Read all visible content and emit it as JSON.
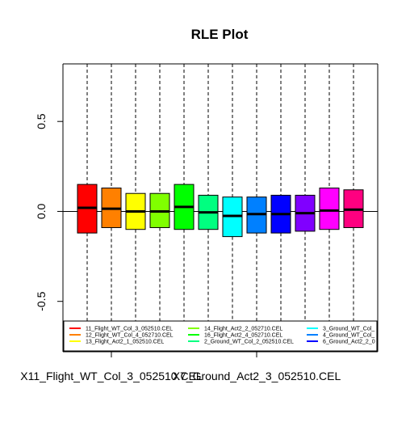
{
  "chart_data": {
    "type": "box",
    "title": "RLE Plot",
    "xlabel": "",
    "ylabel": "",
    "ylim": [
      -0.78,
      0.82
    ],
    "yticks": [
      -0.5,
      0.0,
      0.5
    ],
    "ytick_labels": [
      "-0.5",
      "0.0",
      "0.5"
    ],
    "x_tick_labels": [
      "X11_Flight_WT_Col_3_052510.CEL",
      "X7_Ground_Act2_3_052510.CEL"
    ],
    "x_tick_positions": [
      2,
      8
    ],
    "reference_line": 0,
    "grid": false,
    "legend_position": "bottom",
    "boxes": [
      {
        "q1": -0.12,
        "median": 0.02,
        "q3": 0.15,
        "color": "#FF0000"
      },
      {
        "q1": -0.09,
        "median": 0.015,
        "q3": 0.13,
        "color": "#FF8000"
      },
      {
        "q1": -0.1,
        "median": 0.0,
        "q3": 0.1,
        "color": "#FFFF00"
      },
      {
        "q1": -0.09,
        "median": 0.0,
        "q3": 0.1,
        "color": "#80FF00"
      },
      {
        "q1": -0.1,
        "median": 0.025,
        "q3": 0.15,
        "color": "#00FF00"
      },
      {
        "q1": -0.1,
        "median": -0.005,
        "q3": 0.09,
        "color": "#00FF80"
      },
      {
        "q1": -0.14,
        "median": -0.025,
        "q3": 0.08,
        "color": "#00FFFF"
      },
      {
        "q1": -0.12,
        "median": -0.015,
        "q3": 0.08,
        "color": "#0080FF"
      },
      {
        "q1": -0.12,
        "median": -0.015,
        "q3": 0.09,
        "color": "#0000FF"
      },
      {
        "q1": -0.11,
        "median": -0.01,
        "q3": 0.09,
        "color": "#8000FF"
      },
      {
        "q1": -0.1,
        "median": 0.005,
        "q3": 0.13,
        "color": "#FF00FF"
      },
      {
        "q1": -0.09,
        "median": 0.01,
        "q3": 0.12,
        "color": "#FF0080"
      }
    ],
    "legend": [
      {
        "label": "11_Flight_WT_Col_3_052510.CEL",
        "color": "#FF0000"
      },
      {
        "label": "12_Flight_WT_Col_4_052710.CEL",
        "color": "#FF8000"
      },
      {
        "label": "13_Flight_Act2_1_052510.CEL",
        "color": "#FFFF00"
      },
      {
        "label": "14_Flight_Act2_2_052710.CEL",
        "color": "#80FF00"
      },
      {
        "label": "16_Flight_Act2_4_052710.CEL",
        "color": "#00FF00"
      },
      {
        "label": "2_Ground_WT_Col_2_052510.CEL",
        "color": "#00FF80"
      },
      {
        "label": "3_Ground_WT_Col_",
        "color": "#00FFFF"
      },
      {
        "label": "4_Ground_WT_Col_",
        "color": "#0080FF"
      },
      {
        "label": "6_Ground_Act2_2_0",
        "color": "#0000FF"
      }
    ]
  }
}
